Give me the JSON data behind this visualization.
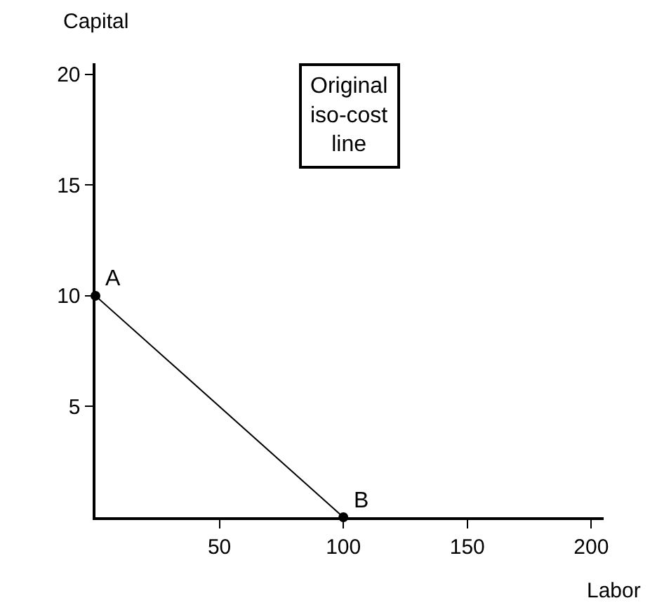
{
  "chart_data": {
    "type": "line",
    "xlabel": "Labor",
    "ylabel": "Capital",
    "x": [
      0,
      100
    ],
    "series": [
      {
        "color": "#000000",
        "values": [
          10,
          0
        ]
      }
    ],
    "xlim": [
      0,
      205
    ],
    "ylim": [
      0,
      20.5
    ],
    "xticks": [
      50,
      100,
      150,
      200
    ],
    "yticks": [
      5,
      10,
      15,
      20
    ],
    "marker": "circle",
    "line_style": "solid",
    "annotations": [
      {
        "text": "A",
        "x": 0,
        "y": 10
      },
      {
        "text": "B",
        "x": 100,
        "y": 0
      },
      "Original\niso-cost\nline"
    ]
  }
}
